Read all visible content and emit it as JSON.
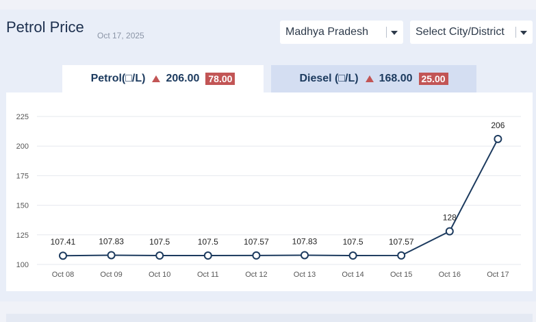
{
  "header": {
    "title": "Petrol Price",
    "date": "Oct 17, 2025"
  },
  "filters": {
    "state": "Madhya Pradesh",
    "city_placeholder": "Select City/District"
  },
  "tabs": [
    {
      "label": "Petrol(□/L)",
      "price": "206.00",
      "change": "78.00",
      "active": true
    },
    {
      "label": "Diesel (□/L)",
      "price": "168.00",
      "change": "25.00",
      "active": false
    }
  ],
  "colors": {
    "line": "#1c3a5e",
    "badge": "#c25555",
    "up_arrow": "#c25555",
    "active_tab": "#ffffff",
    "inactive_tab": "#d4def2"
  },
  "icons": {
    "dropdown": "caret-down-icon",
    "change_indicator": "triangle-up-icon"
  },
  "chart_data": {
    "type": "line",
    "categories": [
      "Oct 08",
      "Oct 09",
      "Oct 10",
      "Oct 11",
      "Oct 12",
      "Oct 13",
      "Oct 14",
      "Oct 15",
      "Oct 16",
      "Oct 17"
    ],
    "values": [
      107.41,
      107.83,
      107.5,
      107.5,
      107.57,
      107.83,
      107.5,
      107.57,
      128,
      206
    ],
    "data_labels": [
      "107.41",
      "107.83",
      "107.5",
      "107.5",
      "107.57",
      "107.83",
      "107.5",
      "107.57",
      "128",
      "206"
    ],
    "yticks": [
      100,
      125,
      150,
      175,
      200,
      225
    ],
    "ylim": [
      100,
      225
    ],
    "grid": true,
    "title": "",
    "xlabel": "",
    "ylabel": ""
  }
}
